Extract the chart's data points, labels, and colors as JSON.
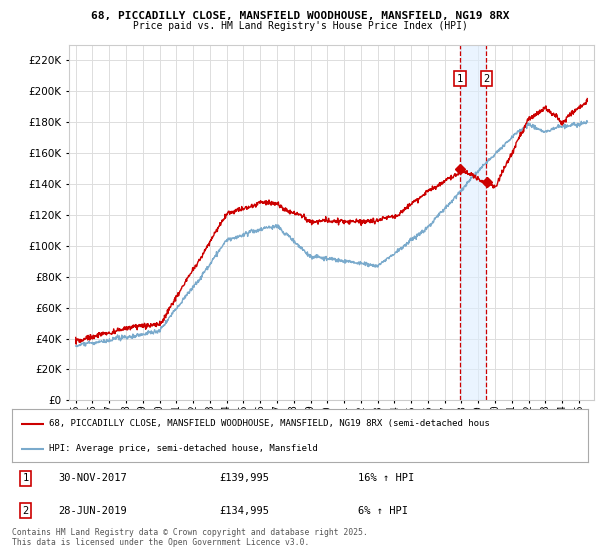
{
  "title1": "68, PICCADILLY CLOSE, MANSFIELD WOODHOUSE, MANSFIELD, NG19 8RX",
  "title2": "Price paid vs. HM Land Registry's House Price Index (HPI)",
  "ylim": [
    0,
    230000
  ],
  "yticks": [
    0,
    20000,
    40000,
    60000,
    80000,
    100000,
    120000,
    140000,
    160000,
    180000,
    200000,
    220000
  ],
  "sale1_date": "30-NOV-2017",
  "sale1_price": 139995,
  "sale1_hpi": "16% ↑ HPI",
  "sale2_date": "28-JUN-2019",
  "sale2_price": 134995,
  "sale2_hpi": "6% ↑ HPI",
  "legend1": "68, PICCADILLY CLOSE, MANSFIELD WOODHOUSE, MANSFIELD, NG19 8RX (semi-detached hous",
  "legend2": "HPI: Average price, semi-detached house, Mansfield",
  "footer": "Contains HM Land Registry data © Crown copyright and database right 2025.\nThis data is licensed under the Open Government Licence v3.0.",
  "red_color": "#cc0000",
  "blue_color": "#7aaacc",
  "bg_color": "#ffffff",
  "grid_color": "#dddddd",
  "sale1_x": 2017.92,
  "sale2_x": 2019.49,
  "marker_shade": "#ddeeff",
  "xlim_left": 1994.6,
  "xlim_right": 2025.9
}
